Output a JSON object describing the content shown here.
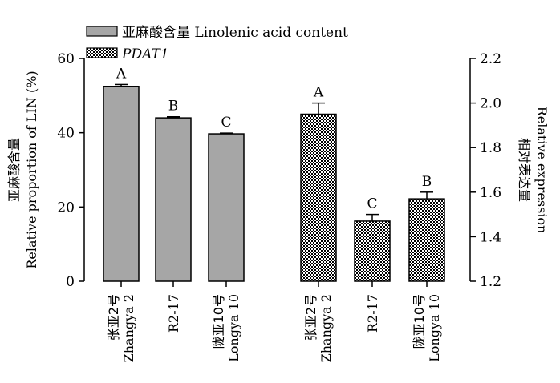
{
  "chart_data": {
    "type": "bar",
    "legend": [
      {
        "label": "亚麻酸含量 Linolenic acid content",
        "pattern": "solid-gray"
      },
      {
        "label": "PDAT1",
        "pattern": "checker"
      }
    ],
    "y_left": {
      "label_cn": "亚麻酸含量",
      "label_en": "Relative proportion of LIN (%)",
      "ylim": [
        0,
        60
      ],
      "ticks": [
        "0",
        "20",
        "40",
        "60"
      ]
    },
    "y_right": {
      "label_cn": "相对表达量",
      "label_en": "Relative expression",
      "ylim": [
        1.2,
        2.2
      ],
      "ticks": [
        "1.2",
        "1.4",
        "1.6",
        "1.8",
        "2.0",
        "2.2"
      ]
    },
    "categories": [
      {
        "cn": "张亚2号",
        "en": "Zhangya 2"
      },
      {
        "cn": "",
        "en": "R2-17"
      },
      {
        "cn": "陇亚10号",
        "en": "Longya 10"
      }
    ],
    "series": [
      {
        "name": "亚麻酸含量 Linolenic acid content",
        "axis": "left",
        "values": [
          52.5,
          44,
          39.7
        ],
        "errors": [
          0.5,
          0.3,
          0.2
        ],
        "letters": [
          "A",
          "B",
          "C"
        ],
        "color": "#a6a6a6"
      },
      {
        "name": "PDAT1",
        "axis": "right",
        "values": [
          1.95,
          1.47,
          1.57
        ],
        "errors": [
          0.05,
          0.03,
          0.03
        ],
        "letters": [
          "A",
          "C",
          "B"
        ],
        "color": "#000000"
      }
    ]
  }
}
